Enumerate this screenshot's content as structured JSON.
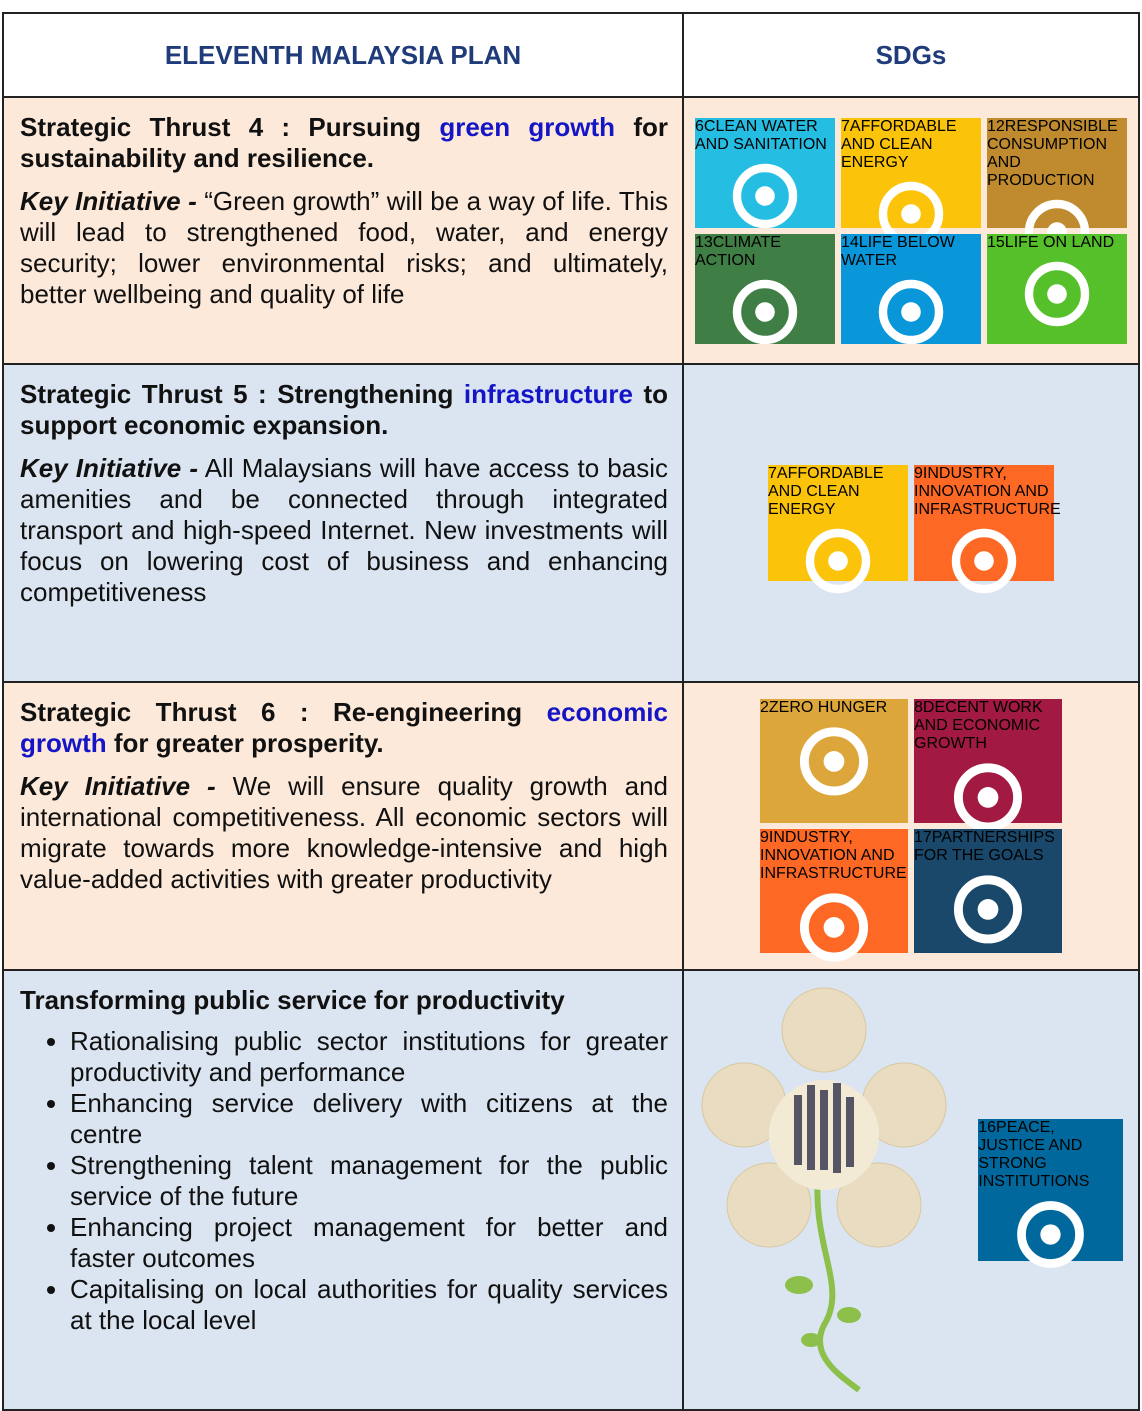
{
  "header": {
    "left": "ELEVENTH MALAYSIA PLAN",
    "right": "SDGs"
  },
  "rows": [
    {
      "thrust": {
        "before": "Strategic Thrust 4 : Pursuing",
        "highlight": "green growth",
        "after": "for sustainability and resilience."
      },
      "key_initiative": {
        "label": "Key Initiative -",
        "text": "“Green growth” will be a way of life. This will lead to strengthened food, water, and energy security; lower environmental risks; and ultimately, better wellbeing and quality of life"
      },
      "sdgs": [
        {
          "number": "6",
          "label": "CLEAN WATER AND SANITATION",
          "color": "#26bde2"
        },
        {
          "number": "7",
          "label": "AFFORDABLE AND CLEAN ENERGY",
          "color": "#fcc30b"
        },
        {
          "number": "12",
          "label": "RESPONSIBLE CONSUMPTION AND PRODUCTION",
          "color": "#bf8b2e"
        },
        {
          "number": "13",
          "label": "CLIMATE ACTION",
          "color": "#3f7e44"
        },
        {
          "number": "14",
          "label": "LIFE BELOW WATER",
          "color": "#0a97d9"
        },
        {
          "number": "15",
          "label": "LIFE ON LAND",
          "color": "#56c02b"
        }
      ]
    },
    {
      "thrust": {
        "before": "Strategic Thrust 5 : Strengthening",
        "highlight": "infrastructure",
        "after": "to support economic expansion."
      },
      "key_initiative": {
        "label": "Key Initiative -",
        "text": "All Malaysians will have access to basic amenities and be connected through integrated transport and high-speed Internet. New investments will focus on lowering cost of business and enhancing competitiveness"
      },
      "sdgs": [
        {
          "number": "7",
          "label": "AFFORDABLE AND CLEAN ENERGY",
          "color": "#fcc30b"
        },
        {
          "number": "9",
          "label": "INDUSTRY, INNOVATION AND INFRASTRUCTURE",
          "color": "#fd6925"
        }
      ]
    },
    {
      "thrust": {
        "before": "Strategic Thrust 6 : Re-engineering",
        "highlight": "economic growth",
        "after": "for greater prosperity."
      },
      "key_initiative": {
        "label": "Key Initiative -",
        "text": "We will ensure quality growth and international competitiveness. All economic sectors will migrate towards more knowledge-intensive and high value-added activities with greater productivity"
      },
      "sdgs": [
        {
          "number": "2",
          "label": "ZERO HUNGER",
          "color": "#dda63a"
        },
        {
          "number": "8",
          "label": "DECENT WORK AND ECONOMIC GROWTH",
          "color": "#a21942"
        },
        {
          "number": "9",
          "label": "INDUSTRY, INNOVATION AND INFRASTRUCTURE",
          "color": "#fd6925"
        },
        {
          "number": "17",
          "label": "PARTNERSHIPS FOR THE GOALS",
          "color": "#19486a"
        }
      ]
    }
  ],
  "public_service": {
    "title": "Transforming public service for productivity",
    "bullets": [
      "Rationalising public sector institutions for greater productivity and performance",
      "Enhancing service delivery with citizens at the centre",
      "Strengthening talent management for the public service of the future",
      "Enhancing project management for better and faster outcomes",
      "Capitalising on local authorities for quality services at the local level"
    ],
    "sdgs": [
      {
        "number": "16",
        "label": "PEACE, JUSTICE AND STRONG INSTITUTIONS",
        "color": "#00689d"
      }
    ]
  }
}
